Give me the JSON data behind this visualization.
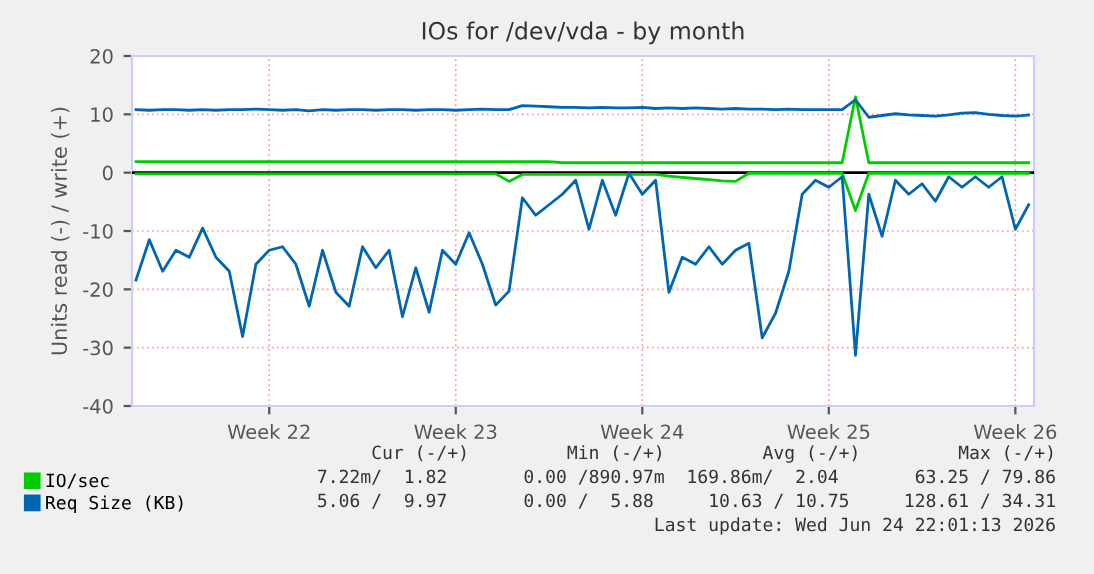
{
  "chart_data": {
    "type": "line",
    "title": "IOs for /dev/vda - by month",
    "ylabel": "Units read (-) / write (+)",
    "categories": [
      null,
      null,
      null,
      null,
      null,
      null,
      null,
      null,
      null,
      null,
      "Week 22",
      null,
      null,
      null,
      null,
      null,
      null,
      null,
      null,
      null,
      null,
      null,
      null,
      null,
      "Week 23",
      null,
      null,
      null,
      null,
      null,
      null,
      null,
      null,
      null,
      null,
      null,
      null,
      null,
      "Week 24",
      null,
      null,
      null,
      null,
      null,
      null,
      null,
      null,
      null,
      null,
      null,
      null,
      null,
      "Week 25",
      null,
      null,
      null,
      null,
      null,
      null,
      null,
      null,
      null,
      null,
      null,
      null,
      null,
      "Week 26",
      null
    ],
    "ylim": [
      -40,
      20
    ],
    "yticks": [
      -40,
      -30,
      -20,
      -10,
      0,
      10,
      20
    ],
    "grid": true,
    "legend": "bottom left",
    "ref_lines": [
      {
        "axis": "y",
        "value": 0,
        "color": "#000000"
      }
    ],
    "series": [
      {
        "name": "IO/sec",
        "color": "#00cc00",
        "values": [
          1.9,
          1.9,
          1.9,
          1.9,
          1.9,
          1.9,
          1.9,
          1.9,
          1.9,
          1.9,
          1.9,
          1.9,
          1.9,
          1.9,
          1.9,
          1.9,
          1.9,
          1.9,
          1.9,
          1.9,
          1.9,
          1.9,
          1.9,
          1.9,
          1.9,
          1.9,
          1.9,
          1.9,
          1.9,
          1.9,
          1.9,
          1.9,
          1.7,
          1.7,
          1.7,
          1.7,
          1.7,
          1.7,
          1.7,
          1.7,
          1.7,
          1.7,
          1.7,
          1.7,
          1.7,
          1.7,
          1.7,
          1.7,
          1.7,
          1.7,
          1.7,
          1.7,
          1.7,
          1.7,
          13,
          1.7,
          1.7,
          1.7,
          1.7,
          1.7,
          1.7,
          1.7,
          1.7,
          1.7,
          1.7,
          1.7,
          1.7,
          1.7
        ]
      },
      {
        "color": "#00cc00",
        "values": [
          -0.2,
          -0.2,
          -0.2,
          -0.2,
          -0.2,
          -0.2,
          -0.2,
          -0.2,
          -0.2,
          -0.2,
          -0.2,
          -0.2,
          -0.2,
          -0.2,
          -0.2,
          -0.2,
          -0.2,
          -0.2,
          -0.2,
          -0.2,
          -0.2,
          -0.2,
          -0.2,
          -0.2,
          -0.2,
          -0.2,
          -0.2,
          -0.2,
          -1.5,
          -0.3,
          -0.3,
          -0.3,
          -0.3,
          -0.3,
          -0.3,
          -0.3,
          -0.3,
          -0.3,
          -0.3,
          -0.3,
          -0.6,
          -0.8,
          -1.0,
          -1.2,
          -1.4,
          -1.5,
          -0.1,
          -0.1,
          -0.1,
          -0.1,
          -0.1,
          -0.1,
          -0.1,
          -0.1,
          -6.5,
          -0.1,
          -0.1,
          -0.1,
          -0.1,
          -0.1,
          -0.1,
          -0.1,
          -0.1,
          -0.1,
          -0.1,
          -0.1,
          -0.1,
          -0.1
        ]
      },
      {
        "name": "Req Size (KB)",
        "color": "#0066b3",
        "values": [
          10.8,
          10.7,
          10.8,
          10.8,
          10.7,
          10.8,
          10.7,
          10.8,
          10.8,
          10.9,
          10.8,
          10.7,
          10.8,
          10.6,
          10.8,
          10.7,
          10.8,
          10.8,
          10.7,
          10.8,
          10.8,
          10.7,
          10.8,
          10.8,
          10.7,
          10.8,
          10.9,
          10.8,
          10.8,
          11.5,
          11.4,
          11.3,
          11.2,
          11.2,
          11.1,
          11.2,
          11.1,
          11.1,
          11.2,
          11.0,
          11.1,
          11.0,
          11.1,
          11.0,
          10.9,
          11.0,
          10.9,
          10.9,
          10.8,
          10.9,
          10.8,
          10.8,
          10.8,
          10.8,
          12.5,
          9.5,
          9.8,
          10.1,
          9.9,
          9.8,
          9.7,
          9.9,
          10.2,
          10.3,
          10.0,
          9.8,
          9.7,
          9.9
        ]
      },
      {
        "color": "#0066b3",
        "values": [
          -18.4,
          -11.5,
          -16.9,
          -13.3,
          -14.5,
          -9.5,
          -14.5,
          -16.9,
          -28.1,
          -15.7,
          -13.3,
          -12.7,
          -15.7,
          -22.9,
          -13.3,
          -20.5,
          -22.9,
          -12.7,
          -16.3,
          -13.3,
          -24.7,
          -16.3,
          -23.9,
          -13.3,
          -15.7,
          -10.3,
          -15.7,
          -22.7,
          -20.3,
          -4.3,
          -7.3,
          -5.5,
          -3.7,
          -1.3,
          -9.7,
          -1.3,
          -7.3,
          -0.1,
          -3.7,
          -1.3,
          -20.5,
          -14.5,
          -15.7,
          -12.7,
          -15.7,
          -13.3,
          -12.1,
          -28.3,
          -24.1,
          -16.9,
          -3.7,
          -1.3,
          -2.5,
          -0.7,
          -31.3,
          -3.7,
          -10.9,
          -1.3,
          -3.7,
          -1.9,
          -4.9,
          -0.7,
          -2.5,
          -0.7,
          -2.5,
          -0.7,
          -9.7,
          -5.5
        ]
      }
    ],
    "annotations": [
      "Cur (-/+)         Min (-/+)         Avg (-/+)         Max (-/+)",
      "7.22m/  1.82       0.00 /890.97m  169.86m/  2.04       63.25 / 79.86",
      "5.06 /  9.97       0.00 /  5.88     10.63 / 10.75     128.61 / 34.31",
      "Last update: Wed Jun 24 22:01:13 2026"
    ]
  }
}
